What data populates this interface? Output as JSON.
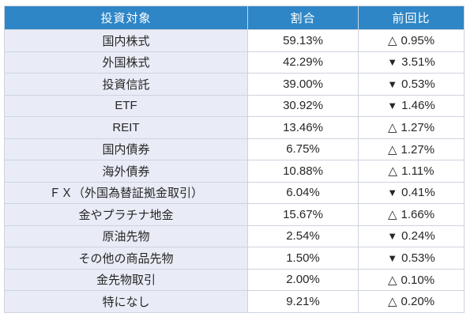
{
  "colors": {
    "header_bg": "#2E86C6",
    "header_fg": "#FFFFFF",
    "label_col_bg": "#E9ECF6",
    "border": "#CED3DE",
    "cell_fg": "#262626"
  },
  "table": {
    "headers": [
      "投資対象",
      "割合",
      "前回比"
    ],
    "rows": [
      {
        "target": "国内株式",
        "ratio": "59.13%",
        "change_dir": "up",
        "change_symbol": "△",
        "change_value": "0.95%"
      },
      {
        "target": "外国株式",
        "ratio": "42.29%",
        "change_dir": "down",
        "change_symbol": "▼",
        "change_value": "3.51%"
      },
      {
        "target": "投資信託",
        "ratio": "39.00%",
        "change_dir": "down",
        "change_symbol": "▼",
        "change_value": "0.53%"
      },
      {
        "target": "ETF",
        "ratio": "30.92%",
        "change_dir": "down",
        "change_symbol": "▼",
        "change_value": "1.46%"
      },
      {
        "target": "REIT",
        "ratio": "13.46%",
        "change_dir": "up",
        "change_symbol": "△",
        "change_value": "1.27%"
      },
      {
        "target": "国内債券",
        "ratio": "6.75%",
        "change_dir": "up",
        "change_symbol": "△",
        "change_value": "1.27%"
      },
      {
        "target": "海外債券",
        "ratio": "10.88%",
        "change_dir": "up",
        "change_symbol": "△",
        "change_value": "1.11%"
      },
      {
        "target": "ＦＸ（外国為替証拠金取引）",
        "ratio": "6.04%",
        "change_dir": "down",
        "change_symbol": "▼",
        "change_value": "0.41%"
      },
      {
        "target": "金やプラチナ地金",
        "ratio": "15.67%",
        "change_dir": "up",
        "change_symbol": "△",
        "change_value": "1.66%"
      },
      {
        "target": "原油先物",
        "ratio": "2.54%",
        "change_dir": "down",
        "change_symbol": "▼",
        "change_value": "0.24%"
      },
      {
        "target": "その他の商品先物",
        "ratio": "1.50%",
        "change_dir": "down",
        "change_symbol": "▼",
        "change_value": "0.53%"
      },
      {
        "target": "金先物取引",
        "ratio": "2.00%",
        "change_dir": "up",
        "change_symbol": "△",
        "change_value": "0.10%"
      },
      {
        "target": "特になし",
        "ratio": "9.21%",
        "change_dir": "up",
        "change_symbol": "△",
        "change_value": "0.20%"
      }
    ]
  }
}
